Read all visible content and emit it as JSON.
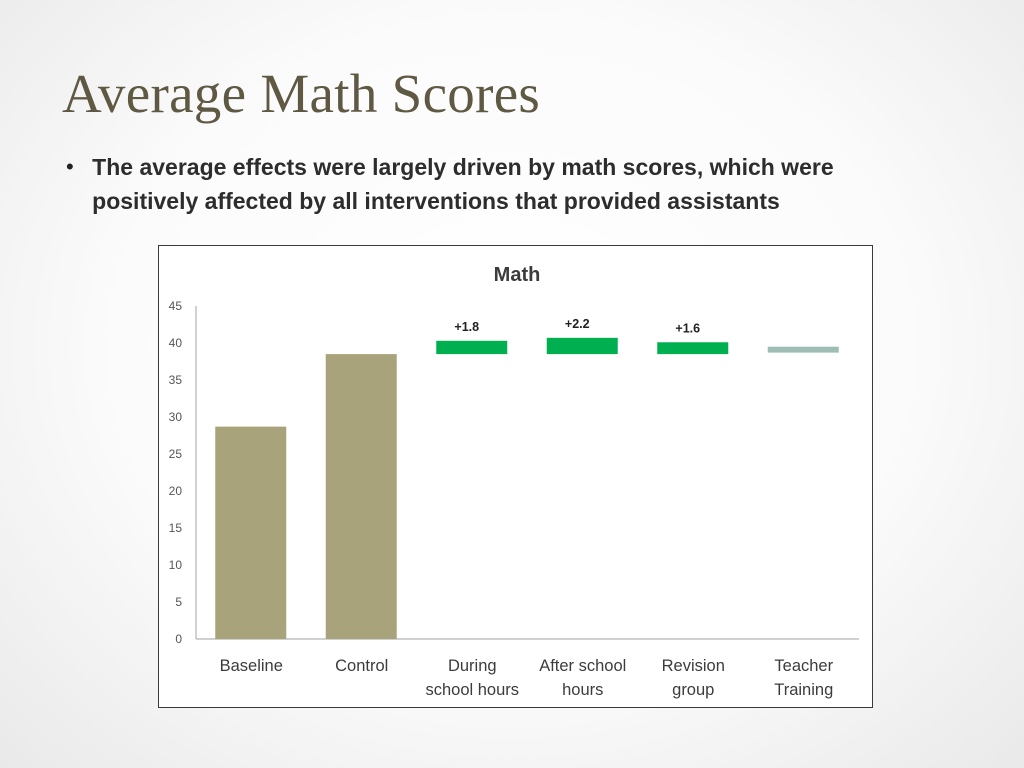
{
  "slide": {
    "title": "Average Math Scores",
    "bullet": "The average effects were largely driven by math scores, which were positively affected by all interventions that provided assistants"
  },
  "chart_data": {
    "type": "bar",
    "title": "Math",
    "xlabel": "",
    "ylabel": "",
    "ylim": [
      0,
      45
    ],
    "yticks": [
      0,
      5,
      10,
      15,
      20,
      25,
      30,
      35,
      40,
      45
    ],
    "grid": false,
    "categories": [
      [
        "Baseline"
      ],
      [
        "Control"
      ],
      [
        "During",
        "school hours"
      ],
      [
        "After school",
        "hours"
      ],
      [
        "Revision",
        "group"
      ],
      [
        "Teacher",
        "Training"
      ]
    ],
    "bars": [
      {
        "category": "Baseline",
        "base": 0,
        "value": 28.7,
        "color": "#a8a37b",
        "label": ""
      },
      {
        "category": "Control",
        "base": 0,
        "value": 38.5,
        "color": "#a8a37b",
        "label": ""
      },
      {
        "category": "During school hours",
        "base": 38.5,
        "value": 40.3,
        "color": "#00b050",
        "label": "+1.8"
      },
      {
        "category": "After school hours",
        "base": 38.5,
        "value": 40.7,
        "color": "#00b050",
        "label": "+2.2"
      },
      {
        "category": "Revision group",
        "base": 38.5,
        "value": 40.1,
        "color": "#00b050",
        "label": "+1.6"
      },
      {
        "category": "Teacher Training",
        "base": 38.7,
        "value": 39.5,
        "color": "#9fbdb4",
        "label": ""
      }
    ]
  }
}
